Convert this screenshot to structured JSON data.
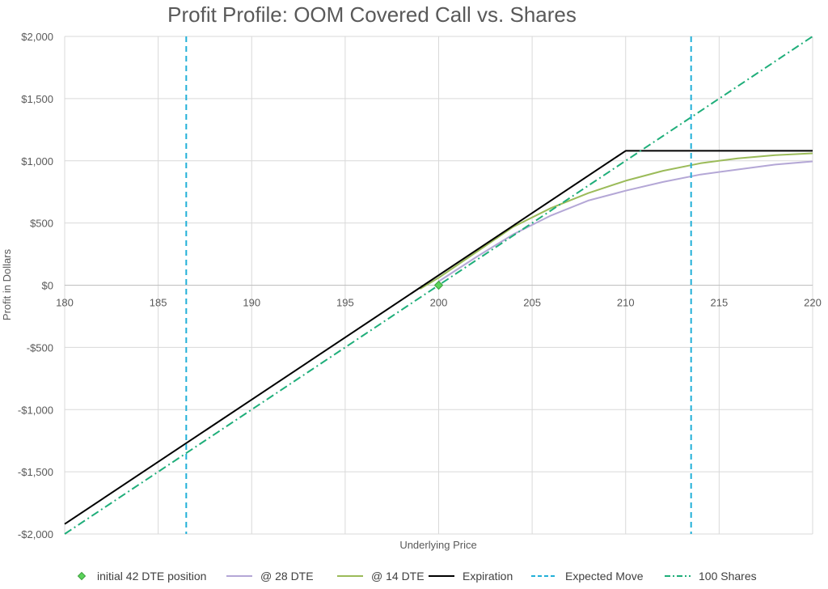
{
  "chart_data": {
    "type": "line",
    "title": "Profit Profile: OOM Covered Call vs. Shares",
    "xlabel": "Underlying Price",
    "ylabel": "Profit in Dollars",
    "xlim": [
      180,
      220
    ],
    "ylim": [
      -2000,
      2000
    ],
    "x_ticks": [
      180,
      185,
      190,
      195,
      200,
      205,
      210,
      215,
      220
    ],
    "x_tick_labels": [
      "180",
      "185",
      "190",
      "195",
      "200",
      "205",
      "210",
      "215",
      "220"
    ],
    "y_ticks": [
      -2000,
      -1500,
      -1000,
      -500,
      0,
      500,
      1000,
      1500,
      2000
    ],
    "y_tick_labels": [
      "-$2,000",
      "-$1,500",
      "-$1,000",
      "-$500",
      "$0",
      "$500",
      "$1,000",
      "$1,500",
      "$2,000"
    ],
    "grid": true,
    "legend_position": "bottom",
    "series": [
      {
        "name": "initial 42 DTE position",
        "kind": "marker",
        "color": "#5ad35a",
        "points": [
          [
            200,
            0
          ]
        ]
      },
      {
        "name": "@ 28 DTE",
        "kind": "line",
        "color": "#b4a7d6",
        "points": [
          [
            200,
            30
          ],
          [
            202,
            225
          ],
          [
            204,
            410
          ],
          [
            206,
            560
          ],
          [
            208,
            680
          ],
          [
            210,
            760
          ],
          [
            212,
            830
          ],
          [
            214,
            890
          ],
          [
            216,
            930
          ],
          [
            218,
            970
          ],
          [
            220,
            995
          ]
        ]
      },
      {
        "name": "@ 14 DTE",
        "kind": "line",
        "color": "#9bbb59",
        "points": [
          [
            199,
            -30
          ],
          [
            200,
            60
          ],
          [
            202,
            265
          ],
          [
            204,
            470
          ],
          [
            206,
            620
          ],
          [
            207,
            680
          ],
          [
            208,
            740
          ],
          [
            210,
            840
          ],
          [
            212,
            920
          ],
          [
            214,
            980
          ],
          [
            216,
            1020
          ],
          [
            218,
            1045
          ],
          [
            220,
            1060
          ]
        ]
      },
      {
        "name": "Expiration",
        "kind": "line",
        "color": "#000000",
        "points": [
          [
            180,
            -1920
          ],
          [
            210,
            1080
          ],
          [
            220,
            1080
          ]
        ]
      },
      {
        "name": "100 Shares",
        "kind": "line",
        "style": "dashdot",
        "color": "#1fae7a",
        "points": [
          [
            180,
            -2000
          ],
          [
            220,
            2000
          ]
        ]
      },
      {
        "name": "Expected Move",
        "kind": "vline",
        "style": "dashed",
        "color": "#22b0d8",
        "x": [
          186.5,
          213.5
        ]
      }
    ],
    "legend_order": [
      "initial 42 DTE position",
      "@ 28 DTE",
      "@ 14 DTE",
      "Expiration",
      "Expected Move",
      "100 Shares"
    ]
  }
}
